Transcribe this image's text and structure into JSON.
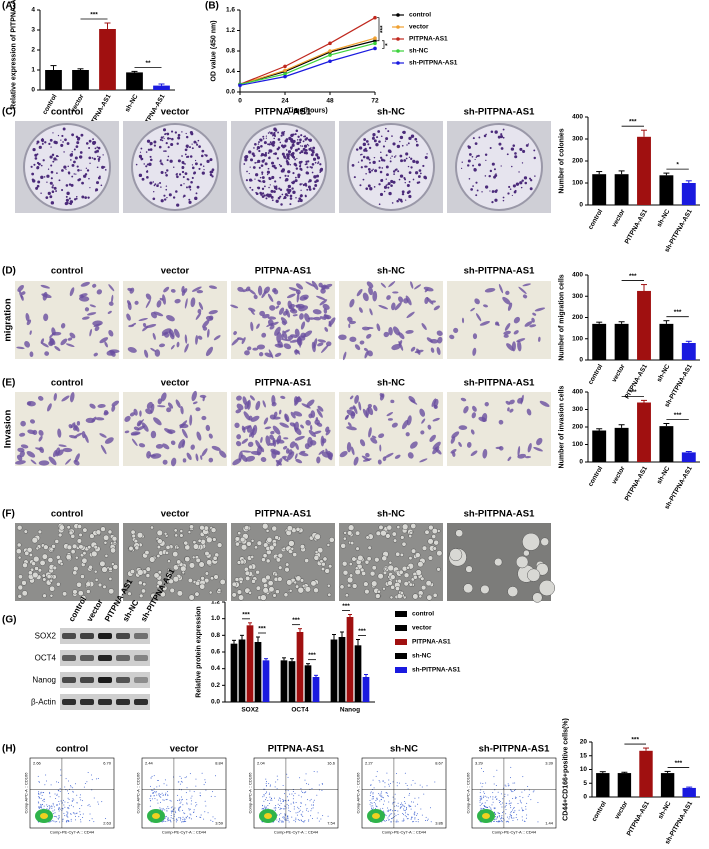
{
  "chart_data": [
    {
      "type": "bar",
      "panel": "(A)",
      "ylabel": "Relative expression of PITPNA-AS1",
      "categories": [
        "control",
        "vector",
        "PITPNA-AS1",
        "sh-NC",
        "sh-PITPNA-AS1"
      ],
      "values": [
        1.0,
        1.0,
        3.05,
        0.88,
        0.22
      ],
      "errors": [
        0.22,
        0.06,
        0.3,
        0.05,
        0.08
      ],
      "colors": [
        "#000000",
        "#000000",
        "#a01010",
        "#000000",
        "#1a1adf"
      ],
      "ylim": [
        0,
        4
      ],
      "yticks": [
        0,
        1,
        2,
        3,
        4
      ],
      "annotations": [
        "***",
        "**"
      ]
    },
    {
      "type": "line",
      "panel": "(B)",
      "xlabel": "Time(hours)",
      "ylabel": "OD value (450 nm)",
      "x": [
        0,
        24,
        48,
        72
      ],
      "xlim": [
        0,
        72
      ],
      "xticks": [
        0,
        24,
        48,
        72
      ],
      "ylim": [
        0,
        1.6
      ],
      "yticks": [
        {
          "value": 0,
          "label": "0.0"
        },
        0.4,
        0.8,
        1.2,
        1.6
      ],
      "series": [
        {
          "name": "control",
          "color": "#000000",
          "values": [
            0.15,
            0.4,
            0.78,
            1.0
          ]
        },
        {
          "name": "vector",
          "color": "#f0a030",
          "values": [
            0.15,
            0.42,
            0.8,
            1.05
          ]
        },
        {
          "name": "PITPNA-AS1",
          "color": "#c0281e",
          "values": [
            0.15,
            0.5,
            0.95,
            1.45
          ]
        },
        {
          "name": "sh-NC",
          "color": "#3cd23c",
          "values": [
            0.15,
            0.35,
            0.72,
            0.95
          ]
        },
        {
          "name": "sh-PITPNA-AS1",
          "color": "#1a1adf",
          "values": [
            0.13,
            0.3,
            0.6,
            0.85
          ]
        }
      ],
      "annotations": [
        "***",
        "*"
      ]
    },
    {
      "type": "bar",
      "ylabel": "Number of colonies",
      "categories": [
        "control",
        "vector",
        "PITPNA-AS1",
        "sh-NC",
        "sh-PITPNA-AS1"
      ],
      "values": [
        140,
        140,
        310,
        135,
        100
      ],
      "errors": [
        12,
        15,
        30,
        10,
        10
      ],
      "colors": [
        "#000000",
        "#000000",
        "#a01010",
        "#000000",
        "#1a1adf"
      ],
      "ylim": [
        0,
        400
      ],
      "yticks": [
        0,
        100,
        200,
        300,
        400
      ],
      "annotations": [
        "***",
        "*"
      ]
    },
    {
      "type": "bar",
      "ylabel": "Number of migration cells",
      "categories": [
        "control",
        "vector",
        "PITPNA-AS1",
        "sh-NC",
        "sh-PITPNA-AS1"
      ],
      "values": [
        170,
        170,
        325,
        170,
        80
      ],
      "errors": [
        8,
        10,
        30,
        15,
        8
      ],
      "colors": [
        "#000000",
        "#000000",
        "#a01010",
        "#000000",
        "#1a1adf"
      ],
      "ylim": [
        0,
        400
      ],
      "yticks": [
        0,
        100,
        200,
        300,
        400
      ],
      "annotations": [
        "***",
        "***"
      ]
    },
    {
      "type": "bar",
      "ylabel": "Number of invasion cells",
      "categories": [
        "control",
        "vector",
        "PITPNA-AS1",
        "sh-NC",
        "sh-PITPNA-AS1"
      ],
      "values": [
        180,
        195,
        340,
        205,
        55
      ],
      "errors": [
        10,
        18,
        12,
        15,
        5
      ],
      "colors": [
        "#000000",
        "#000000",
        "#a01010",
        "#000000",
        "#1a1adf"
      ],
      "ylim": [
        0,
        400
      ],
      "yticks": [
        0,
        100,
        200,
        300,
        400
      ],
      "annotations": [
        "***",
        "***"
      ]
    },
    {
      "type": "groupedbar",
      "ylabel": "Relative protein expression",
      "categories": [
        "SOX2",
        "OCT4",
        "Nanog"
      ],
      "ylim": [
        0,
        1.2
      ],
      "yticks": [
        {
          "value": 0,
          "label": "0.0"
        },
        0.2,
        0.4,
        0.6,
        0.8,
        {
          "value": 1,
          "label": "1.0"
        },
        1.2
      ],
      "series": [
        {
          "name": "control",
          "color": "#000000",
          "values": [
            0.7,
            0.5,
            0.75
          ],
          "errors": [
            0.04,
            0.03,
            0.06
          ]
        },
        {
          "name": "vector",
          "color": "#000000",
          "values": [
            0.75,
            0.49,
            0.78
          ],
          "errors": [
            0.05,
            0.03,
            0.06
          ]
        },
        {
          "name": "PITPNA-AS1",
          "color": "#a01010",
          "values": [
            0.92,
            0.84,
            1.02
          ],
          "errors": [
            0.03,
            0.04,
            0.03
          ]
        },
        {
          "name": "sh-NC",
          "color": "#000000",
          "values": [
            0.72,
            0.44,
            0.68
          ],
          "errors": [
            0.06,
            0.02,
            0.07
          ]
        },
        {
          "name": "sh-PITPNA-AS1",
          "color": "#1a1adf",
          "values": [
            0.5,
            0.3,
            0.3
          ],
          "errors": [
            0.02,
            0.02,
            0.03
          ]
        }
      ],
      "annotations": [
        "***",
        "***",
        "***",
        "***",
        "***",
        "***"
      ]
    },
    {
      "type": "bar",
      "ylabel": "CD44+CD166+positive cells(%)",
      "categories": [
        "control",
        "vector",
        "PITPNA-AS1",
        "sh-NC",
        "sh-PITPNA-AS1"
      ],
      "values": [
        8.7,
        8.7,
        16.8,
        8.7,
        3.3
      ],
      "errors": [
        0.5,
        0.3,
        1.0,
        0.6,
        0.3
      ],
      "colors": [
        "#000000",
        "#000000",
        "#a01010",
        "#000000",
        "#1a1adf"
      ],
      "ylim": [
        0,
        20
      ],
      "yticks": [
        0,
        5,
        10,
        15,
        20
      ],
      "annotations": [
        "***",
        "***"
      ]
    }
  ],
  "figure": {
    "rows": [
      {
        "label": "(C)",
        "kind": "plate",
        "titles": [
          "control",
          "vector",
          "PITPNA-AS1",
          "sh-NC",
          "sh-PITPNA-AS1"
        ]
      },
      {
        "label": "(D)",
        "kind": "stain",
        "side": "migration",
        "titles": [
          "control",
          "vector",
          "PITPNA-AS1",
          "sh-NC",
          "sh-PITPNA-AS1"
        ]
      },
      {
        "label": "(E)",
        "kind": "stain",
        "side": "Invasion",
        "titles": [
          "control",
          "vector",
          "PITPNA-AS1",
          "sh-NC",
          "sh-PITPNA-AS1"
        ]
      },
      {
        "label": "(F)",
        "kind": "phase",
        "titles": [
          "control",
          "vector",
          "PITPNA-AS1",
          "sh-NC",
          "sh-PITPNA-AS1"
        ]
      },
      {
        "label": "(H)",
        "kind": "flow",
        "titles": [
          "control",
          "vector",
          "PITPNA-AS1",
          "sh-NC",
          "sh-PITPNA-AS1"
        ]
      }
    ],
    "western": {
      "label": "(G)",
      "lanes": [
        "control",
        "vector",
        "PITPNA-AS1",
        "sh-NC",
        "sh-PITPNA-AS1"
      ],
      "proteins": [
        "SOX2",
        "OCT4",
        "Nanog",
        "β-Actin"
      ]
    },
    "flow": {
      "xlabel": "Comp-PE-Cy7-A :: CD44",
      "ylabel": "Comp-APC-A :: CD166",
      "quadrants": [
        [
          "2.66",
          "6.70",
          "2.63"
        ],
        [
          "2.44",
          "8.84",
          "3.59"
        ],
        [
          "2.04",
          "16.6",
          "7.54"
        ],
        [
          "2.27",
          "8.67",
          "3.86"
        ],
        [
          "3.29",
          "3.39",
          "1.44"
        ]
      ]
    }
  }
}
